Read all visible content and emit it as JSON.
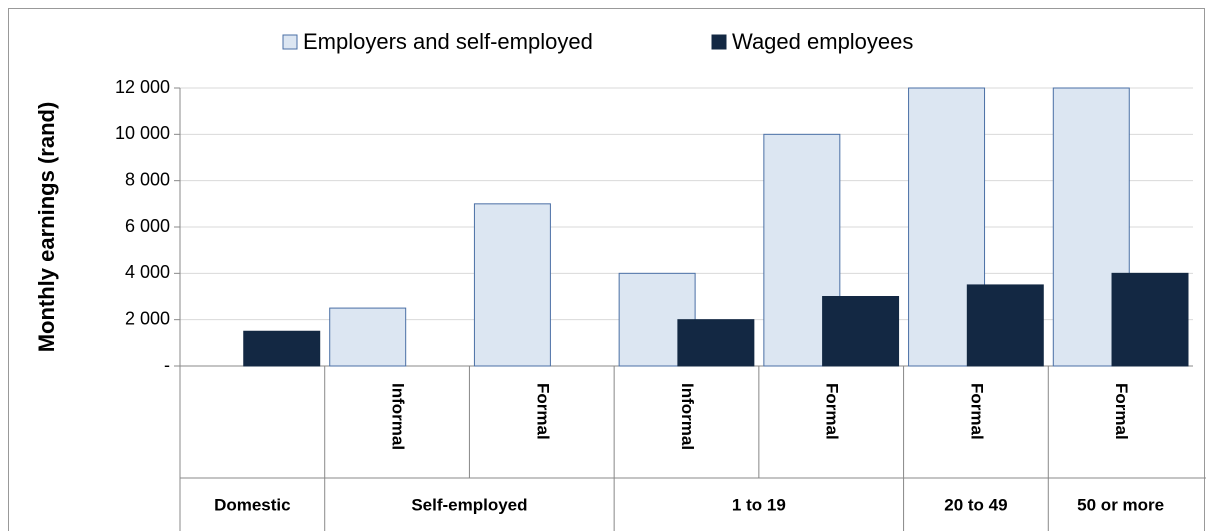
{
  "chart_data": {
    "type": "bar",
    "y_label": "Monthly earnings (rand)",
    "groups": [
      {
        "name": "Domestic",
        "categories": [
          null
        ]
      },
      {
        "name": "Self-employed",
        "categories": [
          "Informal",
          "Formal"
        ]
      },
      {
        "name": "1 to 19",
        "categories": [
          "Informal",
          "Formal"
        ]
      },
      {
        "name": "20 to 49",
        "categories": [
          "Formal"
        ]
      },
      {
        "name": "50 or more",
        "categories": [
          "Formal"
        ]
      }
    ],
    "series": [
      {
        "name": "Employers and self-employed",
        "color": "#dce6f2",
        "values": [
          null,
          2500,
          7000,
          4000,
          10000,
          12000,
          12000
        ]
      },
      {
        "name": "Waged employees",
        "color": "#132843",
        "values": [
          1500,
          null,
          null,
          2000,
          3000,
          3500,
          4000
        ]
      }
    ],
    "ylim": [
      0,
      12000
    ],
    "yticks": [
      {
        "value": 0,
        "label": "-"
      },
      {
        "value": 2000,
        "label": "2 000"
      },
      {
        "value": 4000,
        "label": "4 000"
      },
      {
        "value": 6000,
        "label": "6 000"
      },
      {
        "value": 8000,
        "label": "8 000"
      },
      {
        "value": 10000,
        "label": "10 000"
      },
      {
        "value": 12000,
        "label": "12 000"
      }
    ],
    "grid": true
  }
}
